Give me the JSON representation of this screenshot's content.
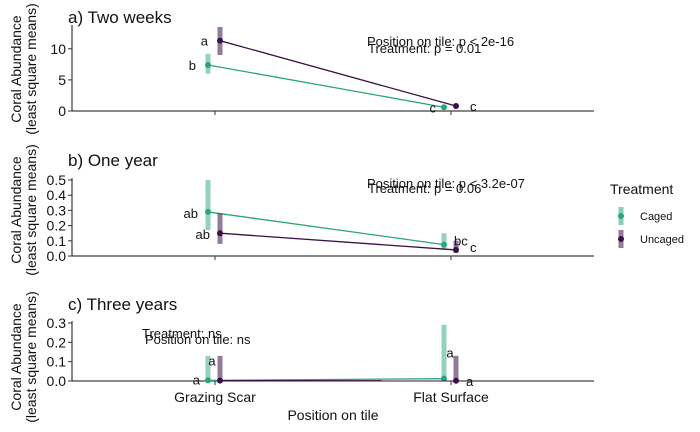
{
  "chart_data": {
    "type": "line",
    "x_categories": [
      "Grazing Scar",
      "Flat Surface"
    ],
    "xlabel": "Position on tile",
    "legend": {
      "title": "Treatment",
      "position": "right",
      "entries": [
        {
          "name": "Caged",
          "color": "#2aa57a"
        },
        {
          "name": "Uncaged",
          "color": "#3b0f47"
        }
      ]
    },
    "grid": false,
    "panels": [
      {
        "title": "a) Two weeks",
        "ylabel": [
          "Coral Abundance",
          "(least square means)"
        ],
        "ylim": [
          0,
          13.5
        ],
        "yticks": [
          "0",
          "5",
          "10"
        ],
        "ytick_values": [
          0,
          5,
          10
        ],
        "annotations": [
          "Position on tile: p < 2e-16",
          "Treatment: p = 0.01"
        ],
        "series": [
          {
            "name": "Caged",
            "values": [
              7.4,
              0.6
            ],
            "lower": [
              6.0,
              0.4
            ],
            "upper": [
              9.2,
              0.8
            ],
            "labels": [
              "b",
              "c"
            ]
          },
          {
            "name": "Uncaged",
            "values": [
              11.3,
              0.8
            ],
            "lower": [
              9.0,
              0.6
            ],
            "upper": [
              13.5,
              1.0
            ],
            "labels": [
              "a",
              "c"
            ]
          }
        ]
      },
      {
        "title": "b) One year",
        "ylabel": [
          "Coral Abundance",
          "(least square means)"
        ],
        "ylim": [
          0,
          0.5
        ],
        "yticks": [
          "0.0",
          "0.1",
          "0.2",
          "0.3",
          "0.4",
          "0.5"
        ],
        "ytick_values": [
          0,
          0.1,
          0.2,
          0.3,
          0.4,
          0.5
        ],
        "annotations": [
          "Position on tile: p < 3.2e-07",
          "Treatment: p = 0.06"
        ],
        "series": [
          {
            "name": "Caged",
            "values": [
              0.29,
              0.075
            ],
            "lower": [
              0.17,
              0.04
            ],
            "upper": [
              0.5,
              0.15
            ],
            "labels": [
              "ab",
              "bc"
            ]
          },
          {
            "name": "Uncaged",
            "values": [
              0.15,
              0.04
            ],
            "lower": [
              0.08,
              0.02
            ],
            "upper": [
              0.28,
              0.1
            ],
            "labels": [
              "ab",
              "c"
            ]
          }
        ]
      },
      {
        "title": "c) Three years",
        "ylabel": [
          "Coral Abundance",
          "(least square means)"
        ],
        "ylim": [
          0,
          0.3
        ],
        "yticks": [
          "0.0",
          "0.1",
          "0.2",
          "0.3"
        ],
        "ytick_values": [
          0,
          0.1,
          0.2,
          0.3
        ],
        "annotations": [
          "Treatment: ns",
          "Position on tile: ns"
        ],
        "series": [
          {
            "name": "Caged",
            "values": [
              0.003,
              0.012
            ],
            "lower": [
              0.0,
              0.0
            ],
            "upper": [
              0.13,
              0.29
            ],
            "labels": [
              "a",
              "a"
            ]
          },
          {
            "name": "Uncaged",
            "values": [
              0.002,
              0.001
            ],
            "lower": [
              0.0,
              0.0
            ],
            "upper": [
              0.13,
              0.13
            ],
            "labels": [
              "a",
              "a"
            ]
          }
        ]
      }
    ]
  }
}
